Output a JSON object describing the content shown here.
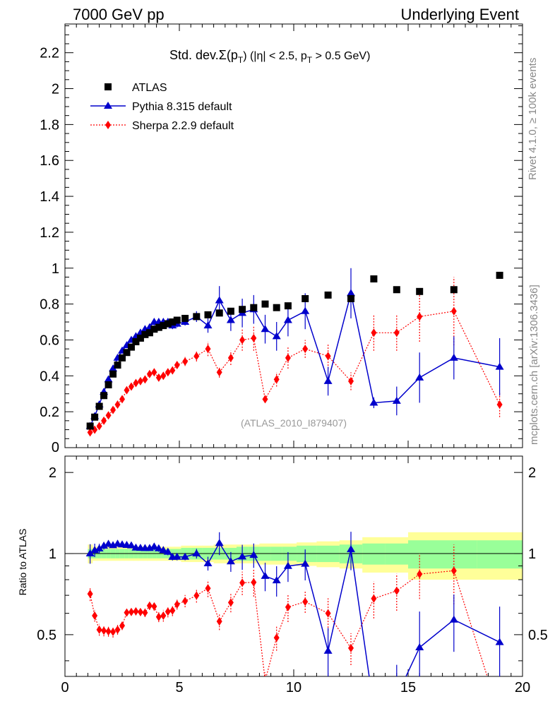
{
  "header": {
    "left": "7000 GeV pp",
    "right": "Underlying Event"
  },
  "side_labels": {
    "rivet": "Rivet 4.1.0, ≥ 100k events",
    "mcplots": "mcplots.cern.ch [arXiv:1306.3436]"
  },
  "chart_data": {
    "type": "scatter",
    "title": "Std. dev.Σ(pₜ) (|η| < 2.5, pₜ > 0.5 GeV)",
    "title_parts": {
      "a": "Std. dev.",
      "b": "Σ(p",
      "c": "T",
      "d": ") (|η| < 2.5, p",
      "e": "T",
      "f": " > 0.5 GeV)"
    },
    "watermark": "(ATLAS_2010_I879407)",
    "xlim": [
      0,
      20
    ],
    "ylim": [
      0,
      2.36
    ],
    "ratio_ylim": [
      0.35,
      2.3
    ],
    "ratio_ylabel": "Ratio to ATLAS",
    "xticks": [
      "0",
      "5",
      "10",
      "15",
      "20"
    ],
    "yticks": [
      "0.2",
      "0.4",
      "0.6",
      "0.8",
      "1",
      "1.2",
      "1.4",
      "1.6",
      "1.8",
      "2",
      "2.2"
    ],
    "ratio_yticks": [
      "0.5",
      "1",
      "2"
    ],
    "y_zero_label": "0",
    "legend": {
      "placement": "top-left",
      "entries": [
        "ATLAS",
        "Pythia 8.315 default",
        "Sherpa 2.2.9 default"
      ]
    },
    "colors": {
      "atlas": "#000000",
      "pythia": "#0000cc",
      "sherpa": "#ff0000",
      "band_inner": "#99ff99",
      "band_outer": "#ffff99"
    },
    "series": [
      {
        "name": "ATLAS",
        "x": [
          1.1,
          1.3,
          1.5,
          1.7,
          1.9,
          2.1,
          2.3,
          2.5,
          2.7,
          2.9,
          3.1,
          3.3,
          3.5,
          3.7,
          3.9,
          4.1,
          4.3,
          4.5,
          4.7,
          4.9,
          5.25,
          5.75,
          6.25,
          6.75,
          7.25,
          7.75,
          8.25,
          8.75,
          9.25,
          9.75,
          10.5,
          11.5,
          12.5,
          13.5,
          14.5,
          15.5,
          17.0,
          19.0
        ],
        "values": [
          0.12,
          0.17,
          0.23,
          0.29,
          0.35,
          0.41,
          0.46,
          0.5,
          0.53,
          0.56,
          0.59,
          0.61,
          0.63,
          0.64,
          0.66,
          0.67,
          0.68,
          0.69,
          0.7,
          0.71,
          0.72,
          0.73,
          0.74,
          0.75,
          0.76,
          0.77,
          0.78,
          0.8,
          0.78,
          0.79,
          0.83,
          0.85,
          0.83,
          0.94,
          0.88,
          0.87,
          0.88,
          0.96
        ],
        "band_inner": [
          0.04,
          0.04,
          0.04,
          0.04,
          0.04,
          0.04,
          0.04,
          0.04,
          0.04,
          0.04,
          0.04,
          0.04,
          0.04,
          0.04,
          0.04,
          0.04,
          0.04,
          0.04,
          0.04,
          0.04,
          0.05,
          0.05,
          0.05,
          0.05,
          0.05,
          0.06,
          0.06,
          0.06,
          0.06,
          0.06,
          0.07,
          0.07,
          0.08,
          0.09,
          0.09,
          0.12,
          0.12,
          0.12
        ],
        "band_outer": [
          0.08,
          0.06,
          0.06,
          0.06,
          0.06,
          0.06,
          0.06,
          0.06,
          0.06,
          0.06,
          0.06,
          0.06,
          0.06,
          0.06,
          0.06,
          0.06,
          0.06,
          0.06,
          0.06,
          0.06,
          0.07,
          0.07,
          0.07,
          0.08,
          0.08,
          0.08,
          0.08,
          0.09,
          0.09,
          0.09,
          0.1,
          0.11,
          0.12,
          0.15,
          0.15,
          0.2,
          0.2,
          0.2
        ]
      },
      {
        "name": "Pythia 8.315 default",
        "x": [
          1.1,
          1.3,
          1.5,
          1.7,
          1.9,
          2.1,
          2.3,
          2.5,
          2.7,
          2.9,
          3.1,
          3.3,
          3.5,
          3.7,
          3.9,
          4.1,
          4.3,
          4.5,
          4.7,
          4.9,
          5.25,
          5.75,
          6.25,
          6.75,
          7.25,
          7.75,
          8.25,
          8.75,
          9.25,
          9.75,
          10.5,
          11.5,
          12.5,
          13.5,
          14.5,
          15.5,
          17.0,
          19.0
        ],
        "values": [
          0.12,
          0.175,
          0.24,
          0.31,
          0.38,
          0.44,
          0.5,
          0.54,
          0.57,
          0.6,
          0.62,
          0.64,
          0.66,
          0.67,
          0.7,
          0.7,
          0.7,
          0.7,
          0.68,
          0.69,
          0.7,
          0.73,
          0.68,
          0.82,
          0.71,
          0.75,
          0.77,
          0.66,
          0.62,
          0.71,
          0.76,
          0.37,
          0.86,
          0.25,
          0.26,
          0.39,
          0.5,
          0.45
        ],
        "errors": [
          0.01,
          0.01,
          0.01,
          0.01,
          0.01,
          0.01,
          0.01,
          0.01,
          0.01,
          0.01,
          0.01,
          0.01,
          0.01,
          0.01,
          0.02,
          0.02,
          0.02,
          0.02,
          0.02,
          0.02,
          0.02,
          0.03,
          0.04,
          0.08,
          0.06,
          0.08,
          0.08,
          0.08,
          0.08,
          0.09,
          0.1,
          0.08,
          0.14,
          0.03,
          0.08,
          0.14,
          0.12,
          0.16
        ]
      },
      {
        "name": "Sherpa 2.2.9 default",
        "x": [
          1.1,
          1.3,
          1.5,
          1.7,
          1.9,
          2.1,
          2.3,
          2.5,
          2.7,
          2.9,
          3.1,
          3.3,
          3.5,
          3.7,
          3.9,
          4.1,
          4.3,
          4.5,
          4.7,
          4.9,
          5.25,
          5.75,
          6.25,
          6.75,
          7.25,
          7.75,
          8.25,
          8.75,
          9.25,
          9.75,
          10.5,
          11.5,
          12.5,
          13.5,
          14.5,
          15.5,
          17.0,
          19.0
        ],
        "values": [
          0.085,
          0.1,
          0.12,
          0.15,
          0.18,
          0.21,
          0.24,
          0.27,
          0.32,
          0.34,
          0.36,
          0.37,
          0.38,
          0.41,
          0.42,
          0.39,
          0.4,
          0.42,
          0.43,
          0.46,
          0.48,
          0.51,
          0.55,
          0.42,
          0.5,
          0.6,
          0.61,
          0.27,
          0.38,
          0.5,
          0.55,
          0.51,
          0.37,
          0.64,
          0.64,
          0.73,
          0.76,
          0.24
        ]
      }
    ],
    "sherpa_errors": [
      0.005,
      0.005,
      0.006,
      0.007,
      0.008,
      0.01,
      0.01,
      0.01,
      0.01,
      0.01,
      0.012,
      0.012,
      0.014,
      0.015,
      0.015,
      0.017,
      0.02,
      0.02,
      0.02,
      0.02,
      0.025,
      0.03,
      0.04,
      0.03,
      0.04,
      0.06,
      0.07,
      0.02,
      0.04,
      0.06,
      0.05,
      0.07,
      0.05,
      0.1,
      0.1,
      0.14,
      0.19,
      0.07
    ]
  }
}
